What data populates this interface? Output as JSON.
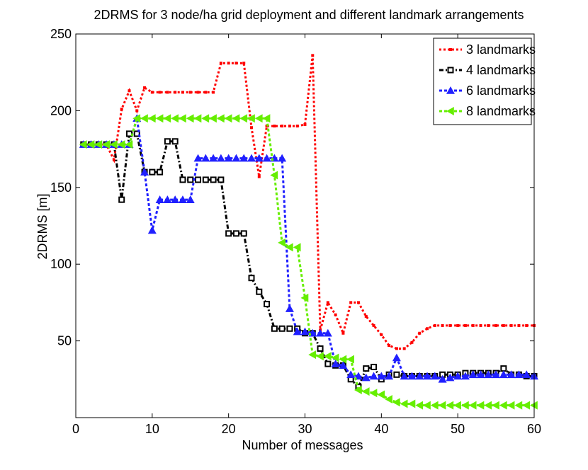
{
  "chart_data": {
    "type": "line",
    "title": "2DRMS for 3 node/ha grid deployment and different landmark arrangements",
    "xlabel": "Number of messages",
    "ylabel": "2DRMS [m]",
    "xlim": [
      0,
      60
    ],
    "ylim": [
      0,
      250
    ],
    "xticks": [
      "0",
      "10",
      "20",
      "30",
      "40",
      "50",
      "60"
    ],
    "yticks": [
      "50",
      "100",
      "150",
      "200",
      "250"
    ],
    "grid": false,
    "legend_position": "top-right",
    "series": [
      {
        "name": "3 landmarks",
        "color": "#ff0000",
        "marker": "dot",
        "values": [
          178,
          178,
          178,
          178,
          168,
          201,
          213,
          200,
          215,
          212,
          212,
          212,
          212,
          212,
          212,
          212,
          212,
          212,
          231,
          231,
          231,
          231,
          189,
          157,
          190,
          190,
          190,
          190,
          190,
          191,
          236,
          57,
          75,
          67,
          55,
          75,
          75,
          66,
          60,
          54,
          47,
          45,
          45,
          49,
          55,
          58,
          60,
          60,
          60,
          60,
          60,
          60,
          60,
          60,
          60,
          60,
          60,
          60,
          60,
          60
        ]
      },
      {
        "name": "4 landmarks",
        "color": "#000000",
        "marker": "square",
        "values": [
          178,
          178,
          178,
          178,
          178,
          142,
          185,
          185,
          160,
          160,
          160,
          180,
          180,
          155,
          155,
          155,
          155,
          155,
          155,
          120,
          120,
          120,
          91,
          82,
          74,
          58,
          58,
          58,
          58,
          55,
          55,
          45,
          35,
          34,
          34,
          25,
          20,
          32,
          33,
          25,
          28,
          28,
          27,
          27,
          27,
          27,
          27,
          28,
          28,
          28,
          29,
          29,
          29,
          29,
          29,
          32,
          28,
          28,
          27,
          27
        ]
      },
      {
        "name": "6 landmarks",
        "color": "#2020ff",
        "marker": "triangle-up",
        "values": [
          178,
          178,
          178,
          178,
          178,
          178,
          178,
          195,
          160,
          122,
          142,
          142,
          142,
          142,
          142,
          169,
          169,
          169,
          169,
          169,
          169,
          169,
          169,
          169,
          169,
          169,
          169,
          71,
          56,
          56,
          55,
          55,
          55,
          35,
          34,
          28,
          27,
          26,
          27,
          27,
          27,
          39,
          27,
          27,
          27,
          27,
          27,
          25,
          26,
          27,
          27,
          28,
          28,
          28,
          28,
          28,
          28,
          28,
          28,
          27
        ]
      },
      {
        "name": "8 landmarks",
        "color": "#66ee00",
        "marker": "triangle-left",
        "values": [
          178,
          178,
          178,
          178,
          178,
          178,
          178,
          195,
          195,
          195,
          195,
          195,
          195,
          195,
          195,
          195,
          195,
          195,
          195,
          195,
          195,
          195,
          195,
          195,
          195,
          158,
          114,
          111,
          111,
          78,
          41,
          40,
          40,
          39,
          38,
          38,
          18,
          17,
          16,
          15,
          12,
          10,
          9,
          9,
          8,
          8,
          8,
          8,
          8,
          8,
          8,
          8,
          8,
          8,
          8,
          8,
          8,
          8,
          8,
          8
        ]
      }
    ]
  }
}
